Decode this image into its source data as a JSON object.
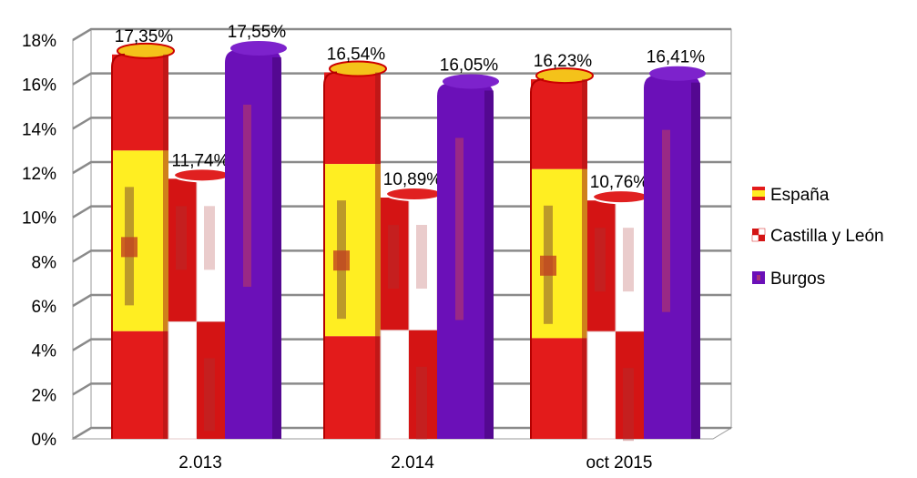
{
  "chart_data": {
    "type": "bar",
    "categories": [
      "2.013",
      "2.014",
      "oct 2015"
    ],
    "series": [
      {
        "name": "España",
        "values": [
          17.35,
          16.54,
          16.23
        ],
        "labels": [
          "17,35%",
          "16,54%",
          "16,23%"
        ],
        "colors": [
          "#e00000",
          "#ffee00",
          "#e00000"
        ]
      },
      {
        "name": "Castilla y León",
        "values": [
          11.74,
          10.89,
          10.76
        ],
        "labels": [
          "11,74%",
          "10,89%",
          "10,76%"
        ],
        "colors": [
          "#d00000",
          "#ffffff"
        ]
      },
      {
        "name": "Burgos",
        "values": [
          17.55,
          16.05,
          16.41
        ],
        "labels": [
          "17,55%",
          "16,05%",
          "16,41%"
        ],
        "colors": [
          "#6a0dad"
        ]
      }
    ],
    "y_ticks": [
      "0%",
      "2%",
      "4%",
      "6%",
      "8%",
      "10%",
      "12%",
      "14%",
      "16%",
      "18%"
    ],
    "ylim": [
      0,
      18
    ],
    "grid": true,
    "legend_position": "right",
    "title": "",
    "xlabel": "",
    "ylabel": ""
  }
}
